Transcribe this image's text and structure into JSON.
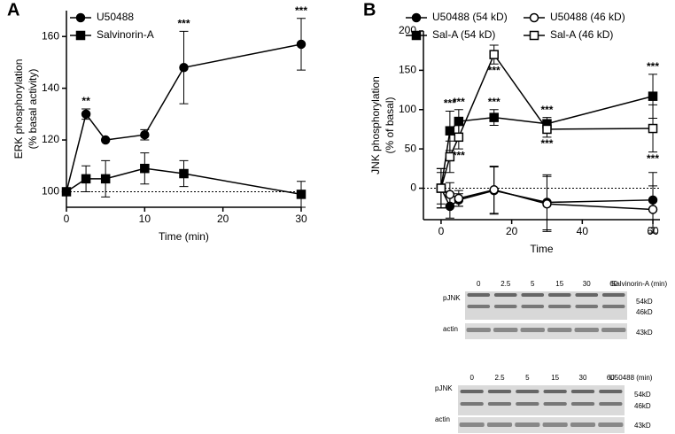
{
  "chart_data": [
    {
      "type": "line",
      "panel": "A",
      "xlabel": "Time (min)",
      "ylabel": [
        "ERK phosphorylation",
        "(% basal activity)"
      ],
      "x": [
        0,
        2.5,
        5,
        10,
        15,
        30
      ],
      "xlim": [
        0,
        30
      ],
      "xticks": [
        0,
        10,
        20,
        30
      ],
      "ylim": [
        94,
        170
      ],
      "yticks": [
        100,
        120,
        140,
        160
      ],
      "reference_line": 100,
      "legend": "upper left",
      "grid": false,
      "series": [
        {
          "name": "U50488",
          "color": "#000000",
          "marker": "circle",
          "filled": true,
          "values": [
            100,
            130,
            120,
            122,
            148,
            157
          ],
          "errors": [
            0,
            2,
            0,
            2,
            14,
            10
          ],
          "significance": [
            null,
            "**",
            null,
            null,
            "***",
            "***"
          ]
        },
        {
          "name": "Salvinorin-A",
          "color": "#000000",
          "marker": "square",
          "filled": true,
          "values": [
            100,
            105,
            105,
            109,
            107,
            99
          ],
          "errors": [
            0,
            5,
            7,
            6,
            5,
            5
          ],
          "significance": [
            null,
            null,
            null,
            null,
            null,
            null
          ]
        }
      ]
    },
    {
      "type": "line",
      "panel": "B",
      "xlabel": "Time",
      "ylabel": [
        "JNK phosphorylation",
        "(% of basal)"
      ],
      "x": [
        0,
        2.5,
        5,
        15,
        30,
        60
      ],
      "xlim": [
        -5,
        62
      ],
      "xticks": [
        0,
        20,
        40,
        60
      ],
      "ylim": [
        -40,
        200
      ],
      "yticks": [
        0,
        50,
        100,
        150,
        200
      ],
      "reference_line": 0,
      "legend": "top",
      "grid": false,
      "series": [
        {
          "name": "U50488 (54 kD)",
          "color": "#000000",
          "marker": "circle",
          "filled": true,
          "values": [
            0,
            -23,
            -15,
            -3,
            -18,
            -15
          ],
          "errors": [
            25,
            15,
            8,
            30,
            35,
            35
          ],
          "significance": [
            null,
            null,
            null,
            null,
            null,
            null
          ]
        },
        {
          "name": "Sal-A (54 kD)",
          "color": "#000000",
          "marker": "square",
          "filled": true,
          "values": [
            0,
            73,
            85,
            90,
            82,
            117
          ],
          "errors": [
            25,
            25,
            15,
            10,
            8,
            28
          ],
          "significance": [
            null,
            "***",
            "***",
            "***",
            "***",
            "***"
          ]
        },
        {
          "name": "U50488 (46 kD)",
          "color": "#000000",
          "marker": "circle",
          "filled": false,
          "values": [
            0,
            -8,
            -13,
            -2,
            -20,
            -27
          ],
          "errors": [
            20,
            15,
            10,
            30,
            35,
            30
          ],
          "significance": [
            null,
            null,
            null,
            null,
            null,
            null
          ]
        },
        {
          "name": "Sal-A (46 kD)",
          "color": "#000000",
          "marker": "square",
          "filled": false,
          "values": [
            0,
            40,
            65,
            170,
            75,
            76
          ],
          "errors": [
            25,
            20,
            15,
            12,
            10,
            30
          ],
          "significance": [
            null,
            null,
            "***",
            "***",
            "***",
            "***"
          ]
        }
      ]
    }
  ],
  "blots": [
    {
      "treatment": "Salvinorin-A (min)",
      "lanes": [
        "0",
        "2.5",
        "5",
        "15",
        "30",
        "60"
      ],
      "rows": [
        "pJNK",
        "actin"
      ],
      "sizes": [
        "54kD",
        "46kD",
        "43kD"
      ]
    },
    {
      "treatment": "U50488 (min)",
      "lanes": [
        "0",
        "2.5",
        "5",
        "15",
        "30",
        "60"
      ],
      "rows": [
        "pJNK",
        "actin"
      ],
      "sizes": [
        "54kD",
        "46kD",
        "43kD"
      ]
    }
  ]
}
